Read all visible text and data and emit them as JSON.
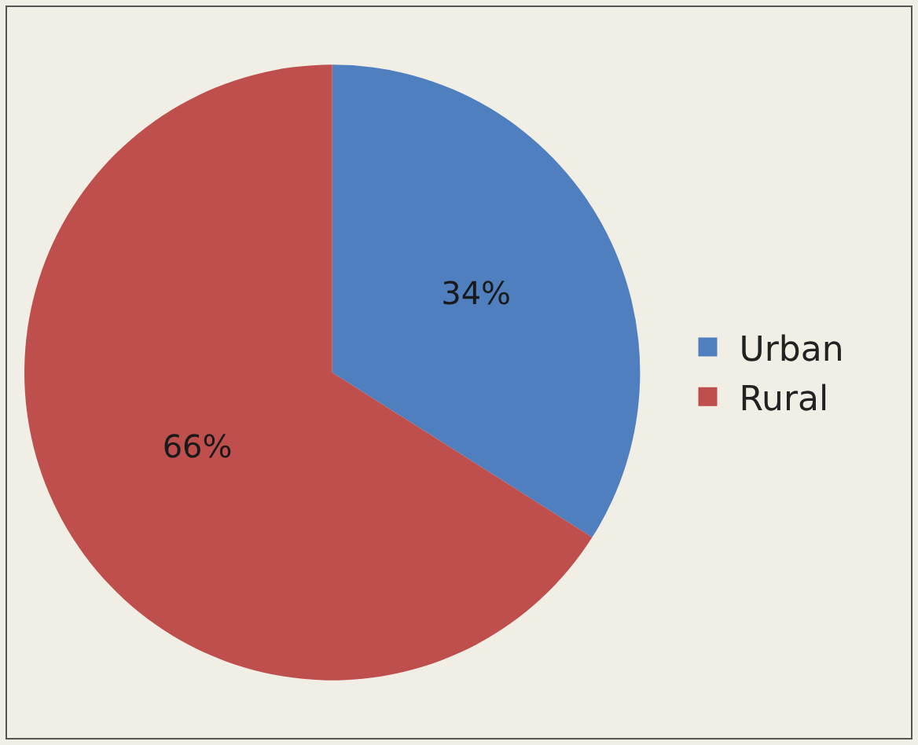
{
  "chart_data": {
    "type": "pie",
    "categories": [
      "Urban",
      "Rural"
    ],
    "values": [
      34,
      66
    ],
    "colors": [
      "#4f7fbf",
      "#bf4f4d"
    ],
    "value_labels": [
      "34%",
      "66%"
    ],
    "legend": "right"
  }
}
